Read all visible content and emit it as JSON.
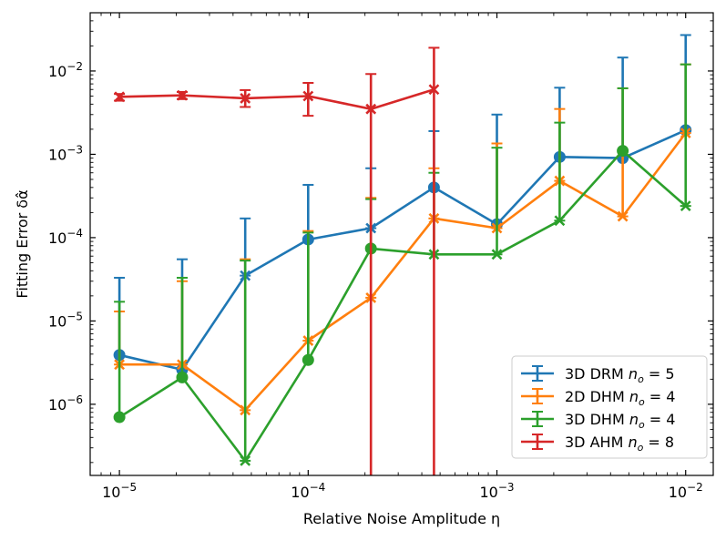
{
  "chart_data": {
    "type": "line",
    "x_scale": "log",
    "y_scale": "log",
    "xlabel": "Relative Noise Amplitude η",
    "ylabel": "Fitting Error δα̂",
    "xlim": [
      7e-06,
      0.014
    ],
    "ylim": [
      1.4e-07,
      0.05
    ],
    "x_ticks": [
      {
        "base": "10",
        "exp": "−5",
        "value": 1e-05
      },
      {
        "base": "10",
        "exp": "−4",
        "value": 0.0001
      },
      {
        "base": "10",
        "exp": "−3",
        "value": 0.001
      },
      {
        "base": "10",
        "exp": "−2",
        "value": 0.01
      }
    ],
    "y_ticks": [
      {
        "base": "10",
        "exp": "−6",
        "value": 1e-06
      },
      {
        "base": "10",
        "exp": "−5",
        "value": 1e-05
      },
      {
        "base": "10",
        "exp": "−4",
        "value": 0.0001
      },
      {
        "base": "10",
        "exp": "−3",
        "value": 0.001
      },
      {
        "base": "10",
        "exp": "−2",
        "value": 0.01
      }
    ],
    "x": [
      1e-05,
      2.15e-05,
      4.64e-05,
      0.0001,
      0.000215,
      0.000464,
      0.001,
      0.00215,
      0.00464,
      0.01
    ],
    "series": [
      {
        "name": "3D DRM",
        "legend": {
          "prefix": "3D DRM ",
          "var": "n",
          "sub": "o",
          "suffix": " = 5"
        },
        "color": "#1f77b4",
        "marker_sequence": [
          "o",
          "o",
          "x",
          "o",
          "x",
          "o",
          "o",
          "o",
          "o",
          "o"
        ],
        "values": [
          3.9e-06,
          2.6e-06,
          3.5e-05,
          9.5e-05,
          0.00013,
          0.0004,
          0.000145,
          0.00093,
          0.0009,
          0.00195
        ],
        "err_low": [
          3.9e-06,
          2.6e-06,
          3.5e-05,
          9.5e-05,
          0.00013,
          0.0004,
          0.000145,
          0.00093,
          0.0009,
          0.00195
        ],
        "err_high": [
          3.3e-05,
          5.5e-05,
          0.00017,
          0.00043,
          0.00068,
          0.0019,
          0.003,
          0.0063,
          0.0145,
          0.027
        ]
      },
      {
        "name": "2D DHM",
        "legend": {
          "prefix": "2D DHM ",
          "var": "n",
          "sub": "o",
          "suffix": " = 4"
        },
        "color": "#ff7f0e",
        "marker": "x",
        "values": [
          3e-06,
          3e-06,
          8.5e-07,
          5.8e-06,
          1.9e-05,
          0.00017,
          0.00013,
          0.00048,
          0.00018,
          0.0018
        ],
        "err_low": [
          3e-06,
          3e-06,
          8.5e-07,
          5.8e-06,
          1.9e-05,
          0.00017,
          0.00013,
          0.00048,
          0.00018,
          0.0018
        ],
        "err_high": [
          1.3e-05,
          3e-05,
          5.5e-05,
          0.00012,
          0.0003,
          0.00068,
          0.00135,
          0.0035,
          0.0062,
          0.012
        ]
      },
      {
        "name": "3D DHM",
        "legend": {
          "prefix": "3D DHM ",
          "var": "n",
          "sub": "o",
          "suffix": " = 4"
        },
        "color": "#2ca02c",
        "marker_sequence": [
          "o",
          "o",
          "x",
          "o",
          "o",
          "x",
          "x",
          "x",
          "o",
          "x"
        ],
        "values": [
          7e-07,
          2.1e-06,
          2.1e-07,
          3.4e-06,
          7.4e-05,
          6.3e-05,
          6.3e-05,
          0.00016,
          0.0011,
          0.00024
        ],
        "err_low": [
          7e-07,
          2.1e-06,
          2.1e-07,
          3.4e-06,
          7.4e-05,
          6.3e-05,
          6.3e-05,
          0.00016,
          0.0011,
          0.00024
        ],
        "err_high": [
          1.7e-05,
          3.3e-05,
          5.3e-05,
          0.000115,
          0.00029,
          0.0006,
          0.0012,
          0.0024,
          0.0062,
          0.012
        ]
      },
      {
        "name": "3D AHM",
        "legend": {
          "prefix": "3D AHM ",
          "var": "n",
          "sub": "o",
          "suffix": " = 8"
        },
        "color": "#d62728",
        "marker": "x",
        "x": [
          1e-05,
          2.15e-05,
          4.64e-05,
          0.0001,
          0.000215,
          0.000464
        ],
        "values": [
          0.0049,
          0.0051,
          0.0047,
          0.005,
          0.0035,
          0.006
        ],
        "err_low": [
          0.0044,
          0.0046,
          0.0037,
          0.0029,
          1e-12,
          1e-12
        ],
        "err_high": [
          0.0053,
          0.0056,
          0.0059,
          0.0072,
          0.0092,
          0.019
        ]
      }
    ],
    "legend_position": "lower-right"
  }
}
